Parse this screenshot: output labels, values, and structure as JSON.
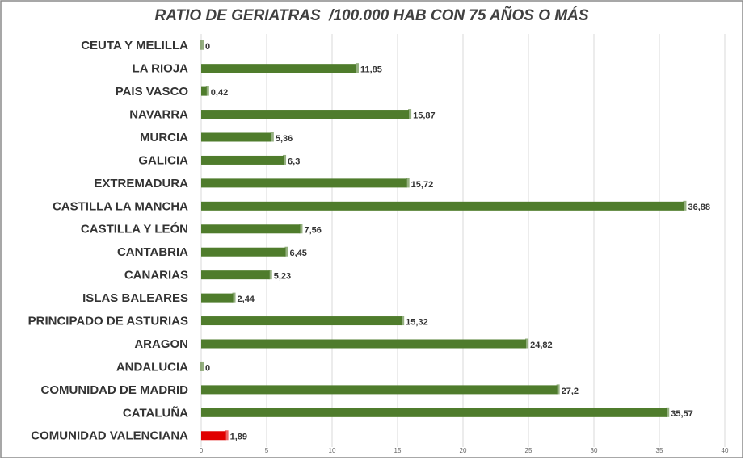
{
  "chart_data": {
    "type": "bar",
    "orientation": "horizontal",
    "title": "RATIO DE GERIATRAS  /100.000 HAB CON 75 AÑOS O MÁS",
    "categories": [
      "CEUTA Y MELILLA",
      "LA RIOJA",
      "PAIS VASCO",
      "NAVARRA",
      "MURCIA",
      "GALICIA",
      "EXTREMADURA",
      "CASTILLA LA MANCHA",
      "CASTILLA Y LEÓN",
      "CANTABRIA",
      "CANARIAS",
      "ISLAS BALEARES",
      "PRINCIPADO DE ASTURIAS",
      "ARAGON",
      "ANDALUCIA",
      "COMUNIDAD DE MADRID",
      "CATALUÑA",
      "COMUNIDAD VALENCIANA"
    ],
    "values": [
      0,
      11.85,
      0.42,
      15.87,
      5.36,
      6.3,
      15.72,
      36.88,
      7.56,
      6.45,
      5.23,
      2.44,
      15.32,
      24.82,
      0,
      27.2,
      35.57,
      1.89
    ],
    "value_labels": [
      "0",
      "11,85",
      "0,42",
      "15,87",
      "5,36",
      "6,3",
      "15,72",
      "36,88",
      "7,56",
      "6,45",
      "5,23",
      "2,44",
      "15,32",
      "24,82",
      "0",
      "27,2",
      "35,57",
      "1,89"
    ],
    "colors": [
      "#4f7c2c",
      "#4f7c2c",
      "#4f7c2c",
      "#4f7c2c",
      "#4f7c2c",
      "#4f7c2c",
      "#4f7c2c",
      "#4f7c2c",
      "#4f7c2c",
      "#4f7c2c",
      "#4f7c2c",
      "#4f7c2c",
      "#4f7c2c",
      "#4f7c2c",
      "#4f7c2c",
      "#4f7c2c",
      "#4f7c2c",
      "#e00000"
    ],
    "xlim": [
      0,
      40
    ],
    "xticks": [
      0,
      5,
      10,
      15,
      20,
      25,
      30,
      35,
      40
    ],
    "grid": true
  }
}
